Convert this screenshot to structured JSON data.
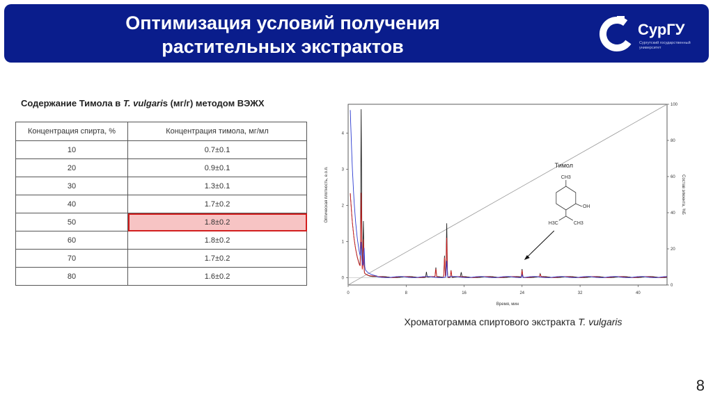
{
  "header": {
    "title_line1": "Оптимизация условий получения",
    "title_line2": "растительных экстрактов",
    "logo_name": "СурГУ",
    "logo_subtitle": "Сургутский государственный университет",
    "bg_color": "#0a1d8c"
  },
  "table": {
    "caption_pre": "Содержание Тимола в ",
    "caption_species": "T. vulgari",
    "caption_species_s": "s",
    "caption_post": " (мг/г) методом ВЭЖХ",
    "headers": [
      "Концентрация спирта, %",
      "Концентрация тимола, мг/мл"
    ],
    "rows": [
      {
        "alcohol": "10",
        "thymol": "0.7±0.1"
      },
      {
        "alcohol": "20",
        "thymol": "0.9±0.1"
      },
      {
        "alcohol": "30",
        "thymol": "1.3±0.1"
      },
      {
        "alcohol": "40",
        "thymol": "1.7±0.2"
      },
      {
        "alcohol": "50",
        "thymol": "1.8±0.2"
      },
      {
        "alcohol": "60",
        "thymol": "1.8±0.2"
      },
      {
        "alcohol": "70",
        "thymol": "1.7±0.2"
      },
      {
        "alcohol": "80",
        "thymol": "1.6±0.2"
      }
    ],
    "highlight_row": 4,
    "highlight_color": "#d21e1e"
  },
  "chart_data": {
    "type": "line",
    "xlabel": "Время, мин",
    "ylabel": "Оптическая плотность, е.о.п.",
    "ylabel_right": "Состав элюента, %Б",
    "xlim": [
      0,
      44
    ],
    "ylim": [
      -0.2,
      4.8
    ],
    "ylim_right": [
      0,
      100
    ],
    "x_ticks": [
      "0",
      "8",
      "16",
      "24",
      "32",
      "40"
    ],
    "y_ticks": [
      "0",
      "1",
      "2",
      "3",
      "4"
    ],
    "y_ticks_right": [
      "0",
      "20",
      "40",
      "60",
      "80",
      "100"
    ],
    "annotation": "Тимол",
    "annotation_x": 24,
    "molecule_labels": [
      "CH3",
      "OH",
      "H3C",
      "CH3"
    ],
    "series": [
      {
        "color": "#222222",
        "peaks": [
          [
            1.8,
            4.4
          ],
          [
            2.1,
            1.4
          ],
          [
            10.8,
            0.15
          ],
          [
            12.1,
            0.25
          ],
          [
            13.3,
            0.6
          ],
          [
            13.6,
            1.5
          ],
          [
            14.2,
            0.2
          ],
          [
            15.6,
            0.12
          ],
          [
            24.0,
            0.22
          ],
          [
            26.5,
            0.08
          ]
        ]
      },
      {
        "color": "#d42020",
        "peaks": [
          [
            1.8,
            2.1
          ],
          [
            2.1,
            0.9
          ],
          [
            12.1,
            0.22
          ],
          [
            13.3,
            0.55
          ],
          [
            13.6,
            1.1
          ],
          [
            14.2,
            0.18
          ],
          [
            24.0,
            0.2
          ],
          [
            26.5,
            0.06
          ]
        ]
      },
      {
        "color": "#2a3ad0",
        "peaks": [
          [
            1.8,
            0.5
          ],
          [
            2.2,
            0.55
          ],
          [
            13.6,
            0.45
          ],
          [
            24.0,
            0.08
          ]
        ]
      }
    ],
    "gradient": {
      "color": "#999999",
      "points": [
        [
          0,
          0
        ],
        [
          44,
          100
        ]
      ]
    }
  },
  "chart_caption_pre": "Хроматограмма спиртового экстракта ",
  "chart_caption_species": "T. vulgaris",
  "page_number": "8"
}
